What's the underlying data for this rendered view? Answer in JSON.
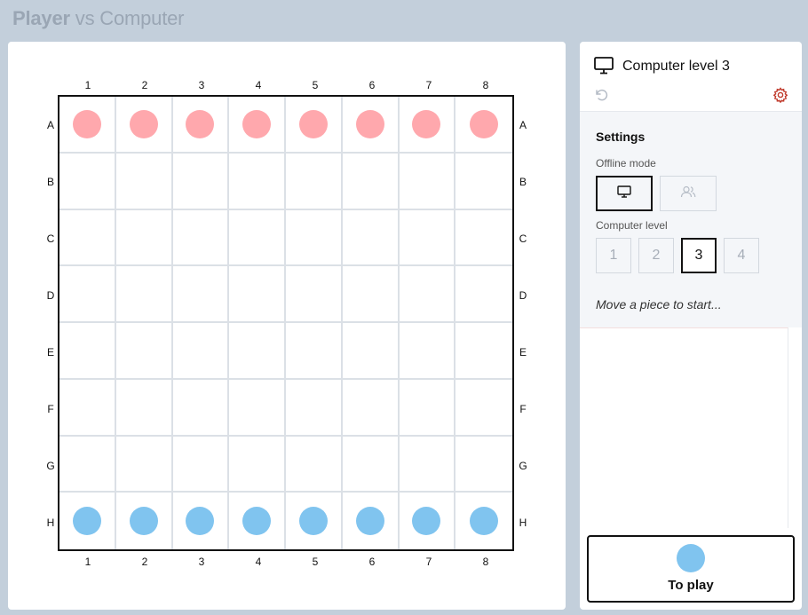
{
  "header": {
    "title_bold": "Player",
    "title_rest": " vs Computer"
  },
  "board": {
    "columns": [
      "1",
      "2",
      "3",
      "4",
      "5",
      "6",
      "7",
      "8"
    ],
    "rows": [
      "A",
      "B",
      "C",
      "D",
      "E",
      "F",
      "G",
      "H"
    ],
    "pieces": {
      "A": "red",
      "H": "blue"
    },
    "colors": {
      "red": "#ffa8ad",
      "blue": "#80c4ef"
    }
  },
  "side": {
    "title": "Computer level 3",
    "icons": {
      "title": "monitor-icon",
      "undo": "undo-icon",
      "settings": "gear-icon"
    },
    "settings": {
      "heading": "Settings",
      "offline_label": "Offline mode",
      "modes": [
        {
          "name": "computer",
          "icon": "monitor-icon",
          "selected": true
        },
        {
          "name": "two-players",
          "icon": "users-icon",
          "selected": false
        }
      ],
      "level_label": "Computer level",
      "levels": [
        "1",
        "2",
        "3",
        "4"
      ],
      "selected_level": "3"
    },
    "status": "Move a piece to start...",
    "turn": {
      "label": "To play",
      "color": "blue"
    }
  }
}
